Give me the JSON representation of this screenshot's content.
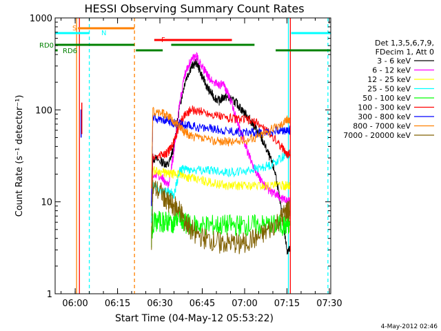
{
  "chart_data": {
    "type": "line",
    "title": "HESSI Observing Summary Count Rates",
    "xlabel": "Start Time (04-May-12 05:53:22)",
    "ylabel": "Count Rate (s⁻¹ detector⁻¹)",
    "yscale": "log",
    "ylim": [
      1,
      1000
    ],
    "xlim": [
      -0.1,
      97.5
    ],
    "x_ticks": [
      {
        "t": 7,
        "label": "06:00"
      },
      {
        "t": 22,
        "label": "06:15"
      },
      {
        "t": 37,
        "label": "06:30"
      },
      {
        "t": 52,
        "label": "06:45"
      },
      {
        "t": 67,
        "label": "07:00"
      },
      {
        "t": 82,
        "label": "07:15"
      },
      {
        "t": 97,
        "label": "07:30"
      }
    ],
    "y_ticks": [
      {
        "v": 1,
        "label": "1"
      },
      {
        "v": 10,
        "label": "10"
      },
      {
        "v": 100,
        "label": "100"
      },
      {
        "v": 1000,
        "label": "1000"
      }
    ],
    "legend": {
      "header": [
        "Det 1,3,5,6,7,9,",
        "FDecim 1, Att 0"
      ],
      "placement": "right"
    },
    "series": [
      {
        "name": "3 - 6 keV",
        "color": "#000000",
        "x": [
          34,
          34.5,
          38,
          40,
          42,
          44,
          46,
          48,
          50,
          52,
          54,
          56,
          58,
          60,
          62,
          64,
          66,
          68,
          70,
          72,
          74,
          76,
          78,
          80,
          82,
          83
        ],
        "y": [
          9,
          30,
          27,
          25,
          40,
          110,
          210,
          290,
          330,
          230,
          170,
          140,
          125,
          140,
          130,
          120,
          100,
          85,
          70,
          55,
          42,
          30,
          20,
          8,
          3,
          3
        ]
      },
      {
        "name": "6 - 12 keV",
        "color": "#ff00ff",
        "x": [
          34,
          34.5,
          38,
          40,
          42,
          44,
          46,
          48,
          50,
          52,
          54,
          56,
          58,
          60,
          62,
          64,
          66,
          68,
          70,
          72,
          74,
          76,
          78,
          80,
          82,
          83
        ],
        "y": [
          7,
          20,
          18,
          15,
          35,
          120,
          250,
          350,
          380,
          300,
          230,
          200,
          190,
          180,
          130,
          80,
          55,
          35,
          25,
          19,
          15,
          13,
          12,
          11,
          10,
          10
        ]
      },
      {
        "name": "12 - 25 keV",
        "color": "#ffff00",
        "x": [
          34,
          34.5,
          38,
          40,
          42,
          44,
          46,
          48,
          52,
          56,
          60,
          64,
          68,
          72,
          76,
          80,
          82,
          83
        ],
        "y": [
          7,
          22,
          21,
          20,
          20,
          20,
          19,
          18,
          17,
          16,
          15,
          15,
          15,
          15,
          15,
          15,
          15,
          15
        ]
      },
      {
        "name": "25 - 50 keV",
        "color": "#00ffff",
        "x": [
          34,
          34.5,
          38,
          40,
          42,
          44,
          46,
          48,
          52,
          56,
          60,
          64,
          68,
          72,
          76,
          80,
          82,
          83
        ],
        "y": [
          6,
          15,
          13,
          13,
          12,
          22,
          23,
          22,
          22,
          22,
          21,
          21,
          22,
          23,
          25,
          30,
          33,
          33
        ]
      },
      {
        "name": "50 - 100 keV",
        "color": "#00ff00",
        "x": [
          34,
          34.5,
          38,
          40,
          42,
          44,
          46,
          48,
          52,
          56,
          60,
          64,
          68,
          72,
          76,
          80,
          82,
          83
        ],
        "y": [
          4,
          6,
          6,
          6,
          6,
          7,
          6,
          5.5,
          5.5,
          5.5,
          5.5,
          5.5,
          5.5,
          5.5,
          5.5,
          5.5,
          5.5,
          5.5
        ]
      },
      {
        "name": "100 - 300 keV",
        "color": "#ff0000",
        "x": [
          34,
          34.5,
          38,
          40,
          42,
          44,
          46,
          48,
          52,
          56,
          60,
          64,
          68,
          72,
          76,
          80,
          82,
          83
        ],
        "y": [
          9,
          30,
          32,
          35,
          45,
          70,
          90,
          100,
          95,
          88,
          82,
          80,
          78,
          70,
          55,
          40,
          33,
          33
        ]
      },
      {
        "name": "300 - 800 keV",
        "color": "#0000ff",
        "x": [
          34,
          34.5,
          38,
          40,
          42,
          44,
          46,
          48,
          52,
          56,
          60,
          64,
          68,
          72,
          76,
          80,
          82,
          83
        ],
        "y": [
          9,
          80,
          78,
          75,
          72,
          70,
          68,
          67,
          64,
          62,
          60,
          58,
          57,
          57,
          58,
          60,
          60,
          60
        ]
      },
      {
        "name": "800 - 7000 keV",
        "color": "#ff8000",
        "x": [
          34,
          34.5,
          38,
          40,
          42,
          44,
          46,
          48,
          52,
          56,
          60,
          64,
          68,
          72,
          76,
          80,
          82,
          83
        ],
        "y": [
          14,
          95,
          92,
          85,
          75,
          65,
          57,
          52,
          48,
          46,
          45,
          45,
          47,
          52,
          60,
          70,
          78,
          78
        ]
      },
      {
        "name": "7000 - 20000 keV",
        "color": "#806000",
        "x": [
          34,
          34.5,
          38,
          40,
          42,
          44,
          46,
          48,
          52,
          56,
          60,
          64,
          68,
          72,
          76,
          80,
          82,
          83
        ],
        "y": [
          3,
          14,
          12,
          10,
          9,
          8,
          6,
          5,
          4,
          3.7,
          3.5,
          3.5,
          3.7,
          4,
          5,
          6.5,
          8,
          8
        ]
      }
    ],
    "status_bars": [
      {
        "label": "S",
        "color": "#ff8000",
        "segments": [
          [
            8,
            28
          ]
        ]
      },
      {
        "label": "N",
        "color": "#00ffff",
        "segments": [
          [
            -0.1,
            12
          ],
          [
            83.5,
            97.5
          ]
        ]
      },
      {
        "label": "RD0",
        "color": "#008000",
        "segments": [
          [
            -0.1,
            28
          ],
          [
            41,
            70.5
          ]
        ]
      },
      {
        "label": "RD6",
        "color": "#008000",
        "segments": [
          [
            -0.1,
            0.8
          ],
          [
            28.5,
            38
          ],
          [
            78,
            97.5
          ]
        ]
      },
      {
        "label": "F",
        "color": "#ff0000",
        "segments": [
          [
            35,
            62.5
          ]
        ]
      }
    ],
    "vertical_markers": [
      {
        "t": 7.5,
        "color": "#ff8000",
        "dash": false
      },
      {
        "t": 8.5,
        "color": "#ff0000",
        "dash": false
      },
      {
        "t": 12,
        "color": "#00ffff",
        "dash": true
      },
      {
        "t": 28,
        "color": "#ff8000",
        "dash": true
      },
      {
        "t": 82.5,
        "color": "#00ffff",
        "dash": false
      },
      {
        "t": 83.2,
        "color": "#ff0000",
        "dash": false
      },
      {
        "t": 96.5,
        "color": "#00ffff",
        "dash": true
      }
    ],
    "spike": {
      "t": 9.1,
      "y0": 50,
      "y1": 120
    },
    "footer_date": "4-May-2012 02:46"
  }
}
